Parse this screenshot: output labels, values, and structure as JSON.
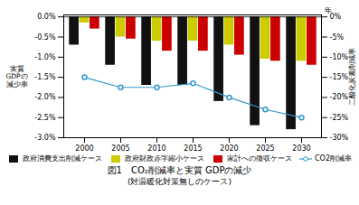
{
  "chart_data": {
    "type": "bar",
    "title": "図1　CO₂削減率と実質 GDPの減少",
    "subtitle": "(対温暖化対策無しのケース)",
    "y_label": "実質\nGDPの\n減少率",
    "y2_label": "二酸化炭素削減率",
    "annotations": [
      "年"
    ],
    "categories": [
      "2000",
      "2005",
      "2010",
      "2015",
      "2020",
      "2025",
      "2030"
    ],
    "series": [
      {
        "name": "政府消費支出削減ケース",
        "color": "#111111",
        "values": [
          -0.7,
          -1.2,
          -1.7,
          -1.7,
          -2.1,
          -2.7,
          -2.8
        ]
      },
      {
        "name": "政府財政赤字縮小ケース",
        "color": "#cccc00",
        "values": [
          -0.15,
          -0.5,
          -0.6,
          -0.6,
          -0.7,
          -1.05,
          -1.1
        ]
      },
      {
        "name": "家計への徴収ケース",
        "color": "#cc0000",
        "values": [
          -0.3,
          -0.55,
          -0.85,
          -0.85,
          -0.95,
          -1.1,
          -1.2
        ]
      },
      {
        "name": "CO2削減率",
        "type": "line",
        "axis": "y2",
        "marker": "o",
        "color": "#3399cc",
        "values": [
          -15.0,
          -17.5,
          -17.5,
          -16.5,
          -20.0,
          -23.0,
          -25.0
        ]
      }
    ],
    "ylim": [
      -3.0,
      0.05
    ],
    "yticks": [
      {
        "value": 0.0,
        "label": "0.0%"
      },
      {
        "value": -0.5,
        "label": "-0.5%"
      },
      {
        "value": -1.0,
        "label": "-1.0%"
      },
      {
        "value": -1.5,
        "label": "-1.5%"
      },
      {
        "value": -2.0,
        "label": "-2.0%"
      },
      {
        "value": -2.5,
        "label": "-2.5%"
      },
      {
        "value": -3.0,
        "label": "-3.0%"
      }
    ],
    "y2lim": [
      -30.0,
      0.5
    ],
    "y2ticks": [
      {
        "value": 0,
        "label": "0%"
      },
      {
        "value": -5,
        "label": "-5%"
      },
      {
        "value": -10,
        "label": "-10%"
      },
      {
        "value": -15,
        "label": "-15%"
      },
      {
        "value": -20,
        "label": "-20%"
      },
      {
        "value": -25,
        "label": "-25%"
      },
      {
        "value": -30,
        "label": "-30%"
      }
    ],
    "grid": false,
    "legend": "bottom"
  }
}
